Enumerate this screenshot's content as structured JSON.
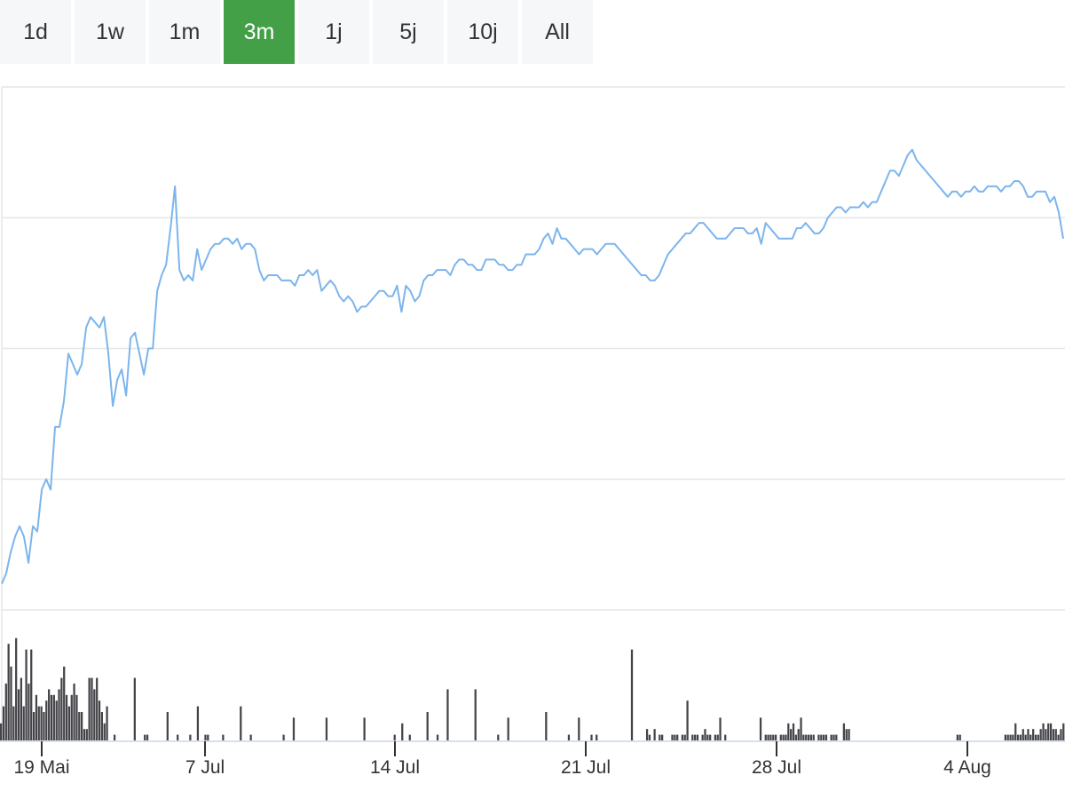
{
  "range_buttons": [
    {
      "label": "1d",
      "active": false
    },
    {
      "label": "1w",
      "active": false
    },
    {
      "label": "1m",
      "active": false
    },
    {
      "label": "3m",
      "active": true
    },
    {
      "label": "1j",
      "active": false
    },
    {
      "label": "5j",
      "active": false
    },
    {
      "label": "10j",
      "active": false
    },
    {
      "label": "All",
      "active": false
    }
  ],
  "colors": {
    "line": "#7cb5ec",
    "volume": "#434348",
    "active_button": "#43a047",
    "grid": "#e6e6e6"
  },
  "chart_data": {
    "type": "line",
    "grid": true,
    "ylim": [
      0,
      100
    ],
    "x_tick_labels": [
      "19 Mai",
      "7 Jul",
      "14 Jul",
      "21 Jul",
      "28 Jul",
      "4 Aug"
    ],
    "series": [
      {
        "values": [
          5,
          7,
          11,
          14,
          16,
          14,
          9,
          16,
          15,
          23,
          25,
          23,
          35,
          35,
          40,
          49,
          47,
          45,
          47,
          54,
          56,
          55,
          54,
          56,
          49,
          39,
          44,
          46,
          41,
          52,
          53,
          49,
          45,
          50,
          50,
          61,
          64,
          66,
          73,
          81,
          65,
          63,
          64,
          63,
          69,
          65,
          67,
          69,
          70,
          70,
          71,
          71,
          70,
          71,
          69,
          70,
          70,
          69,
          65,
          63,
          64,
          64,
          64,
          63,
          63,
          63,
          62,
          64,
          64,
          65,
          64,
          65,
          61,
          62,
          63,
          62,
          60,
          59,
          60,
          59,
          57,
          58,
          58,
          59,
          60,
          61,
          61,
          60,
          60,
          62,
          57,
          62,
          61,
          59,
          60,
          63,
          64,
          64,
          65,
          65,
          65,
          64,
          66,
          67,
          67,
          66,
          66,
          65,
          65,
          67,
          67,
          67,
          66,
          66,
          65,
          65,
          66,
          66,
          68,
          68,
          68,
          69,
          71,
          72,
          70,
          73,
          71,
          71,
          70,
          69,
          68,
          69,
          69,
          69,
          68,
          69,
          70,
          70,
          70,
          69,
          68,
          67,
          66,
          65,
          64,
          64,
          63,
          63,
          64,
          66,
          68,
          69,
          70,
          71,
          72,
          72,
          73,
          74,
          74,
          73,
          72,
          71,
          71,
          71,
          72,
          73,
          73,
          73,
          72,
          72,
          73,
          70,
          74,
          73,
          72,
          71,
          71,
          71,
          71,
          73,
          73,
          74,
          73,
          72,
          72,
          73,
          75,
          76,
          77,
          77,
          76,
          77,
          77,
          77,
          78,
          77,
          78,
          78,
          80,
          82,
          84,
          84,
          83,
          85,
          87,
          88,
          86,
          85,
          84,
          83,
          82,
          81,
          80,
          79,
          80,
          80,
          79,
          80,
          80,
          81,
          80,
          80,
          81,
          81,
          81,
          80,
          81,
          81,
          82,
          82,
          81,
          79,
          79,
          80,
          80,
          80,
          78,
          79,
          76,
          71
        ],
        "unit": "index"
      },
      {
        "type": "bar",
        "values": [
          3,
          6,
          10,
          17,
          13,
          6,
          18,
          9,
          11,
          6,
          16,
          10,
          16,
          5,
          8,
          6,
          6,
          5,
          7,
          9,
          8,
          8,
          7,
          9,
          11,
          13,
          8,
          6,
          8,
          10,
          8,
          5,
          5,
          2,
          2,
          11,
          11,
          9,
          11,
          7,
          5,
          3,
          6,
          0,
          0,
          1,
          0,
          0,
          0,
          0,
          0,
          0,
          0,
          11,
          0,
          0,
          0,
          1,
          1,
          0,
          0,
          0,
          0,
          0,
          0,
          0,
          5,
          0,
          0,
          0,
          1,
          0,
          0,
          0,
          0,
          1,
          0,
          0,
          6,
          0,
          0,
          1,
          1,
          0,
          0,
          0,
          0,
          0,
          1,
          0,
          0,
          0,
          0,
          0,
          0,
          6,
          0,
          0,
          0,
          1,
          0,
          0,
          0,
          0,
          0,
          0,
          0,
          0,
          0,
          0,
          0,
          0,
          1,
          0,
          0,
          0,
          4,
          0,
          0,
          0,
          0,
          0,
          0,
          0,
          0,
          0,
          0,
          0,
          0,
          4,
          0,
          0,
          0,
          0,
          0,
          0,
          0,
          0,
          0,
          0,
          0,
          0,
          0,
          0,
          4,
          0,
          0,
          0,
          0,
          0,
          0,
          0,
          0,
          0,
          0,
          0,
          1,
          0,
          0,
          3,
          0,
          0,
          1,
          0,
          0,
          0,
          0,
          0,
          0,
          5,
          0,
          0,
          0,
          1,
          0,
          0,
          0,
          9,
          0,
          0,
          0,
          0,
          0,
          0,
          0,
          0,
          0,
          0,
          9,
          0,
          0,
          0,
          0,
          0,
          0,
          0,
          0,
          1,
          0,
          0,
          0,
          4,
          0,
          0,
          0,
          0,
          0,
          0,
          0,
          0,
          0,
          0,
          0,
          0,
          0,
          0,
          5,
          0,
          0,
          0,
          0,
          0,
          0,
          0,
          0,
          1,
          0,
          0,
          0,
          4,
          0,
          0,
          0,
          0,
          1,
          0,
          1,
          0,
          0,
          0,
          0,
          0,
          0,
          0,
          0,
          0,
          0,
          0,
          0,
          0,
          16,
          0,
          0,
          0,
          0,
          0,
          2,
          1,
          0,
          2,
          0,
          1,
          1,
          0,
          0,
          0,
          1,
          1,
          1,
          0,
          1,
          1,
          7,
          0,
          1,
          1,
          1,
          0,
          1,
          2,
          1,
          1,
          0,
          1,
          1,
          4,
          0,
          1,
          0,
          0,
          0,
          0,
          0,
          0,
          0,
          0,
          0,
          0,
          0,
          0,
          0,
          4,
          0,
          1,
          1,
          1,
          1,
          1,
          0,
          1,
          1,
          1,
          3,
          2,
          3,
          1,
          2,
          4,
          1,
          1,
          1,
          1,
          1,
          0,
          1,
          1,
          1,
          1,
          0,
          1,
          1,
          1,
          0,
          0,
          3,
          2,
          2,
          0,
          0,
          0,
          0,
          0,
          0,
          0,
          0,
          0,
          0,
          0,
          0,
          0,
          0,
          0,
          0,
          0,
          0,
          0,
          0,
          0,
          0,
          0,
          0,
          0,
          0,
          0,
          0,
          0,
          0,
          0,
          0,
          0,
          0,
          0,
          0,
          0,
          0,
          0,
          0,
          0,
          0,
          1,
          1,
          0,
          0,
          0,
          0,
          0,
          0,
          0,
          0,
          0,
          0,
          0,
          0,
          0,
          0,
          0,
          0,
          0,
          1,
          1,
          1,
          1,
          3,
          1,
          1,
          2,
          1,
          2,
          1,
          2,
          1,
          1,
          2,
          3,
          2,
          3,
          3,
          2,
          2,
          1,
          2,
          3
        ],
        "unit": "volume"
      }
    ],
    "volume_ylim": [
      0,
      20
    ]
  }
}
